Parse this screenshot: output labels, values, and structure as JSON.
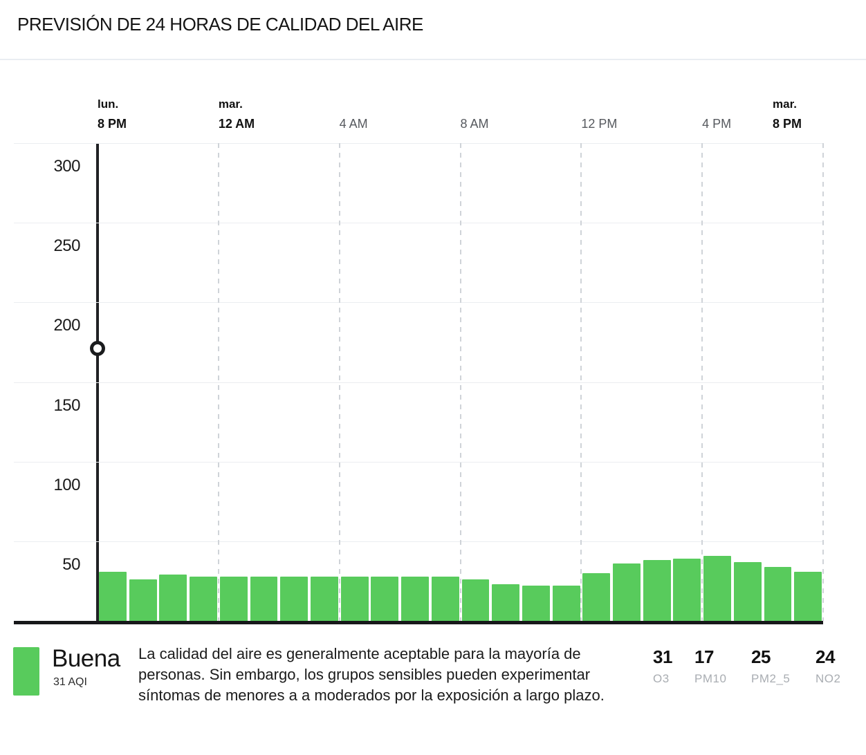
{
  "title": "PREVISIÓN DE 24 HORAS DE CALIDAD DEL AIRE",
  "chart_data": {
    "type": "bar",
    "title": "Previsión de 24 horas de calidad del aire",
    "ylabel": "AQI",
    "ylim": [
      0,
      300
    ],
    "y_ticks": [
      50,
      100,
      150,
      200,
      250,
      300
    ],
    "grid": true,
    "x_ticks": [
      {
        "hour": 0,
        "day": "lun.",
        "label": "8 PM",
        "emphasis": true
      },
      {
        "hour": 4,
        "day": "mar.",
        "label": "12 AM",
        "emphasis": true
      },
      {
        "hour": 8,
        "day": "",
        "label": "4 AM",
        "emphasis": false
      },
      {
        "hour": 12,
        "day": "",
        "label": "8 AM",
        "emphasis": false
      },
      {
        "hour": 16,
        "day": "",
        "label": "12 PM",
        "emphasis": false
      },
      {
        "hour": 20,
        "day": "",
        "label": "4 PM",
        "emphasis": false
      },
      {
        "hour": 24,
        "day": "mar.",
        "label": "8 PM",
        "emphasis": true
      }
    ],
    "values": [
      31,
      26,
      29,
      28,
      28,
      28,
      28,
      28,
      28,
      28,
      28,
      28,
      26,
      23,
      22,
      22,
      30,
      36,
      38,
      39,
      41,
      37,
      34,
      31
    ],
    "bar_color": "#58cb5c",
    "scrubber": {
      "hour": 0,
      "marker_value": 171
    }
  },
  "legend": {
    "category": "Buena",
    "aqi": "31 AQI",
    "swatch_color": "#58cb5c",
    "description": "La calidad del aire es generalmente aceptable para la mayoría de personas. Sin embargo, los grupos sensibles pueden experimentar síntomas de menores a a moderados por la exposición a largo plazo."
  },
  "pollutants": [
    {
      "value": "31",
      "label": "O3"
    },
    {
      "value": "17",
      "label": "PM10"
    },
    {
      "value": "25",
      "label": "PM2_5"
    },
    {
      "value": "24",
      "label": "NO2"
    }
  ]
}
